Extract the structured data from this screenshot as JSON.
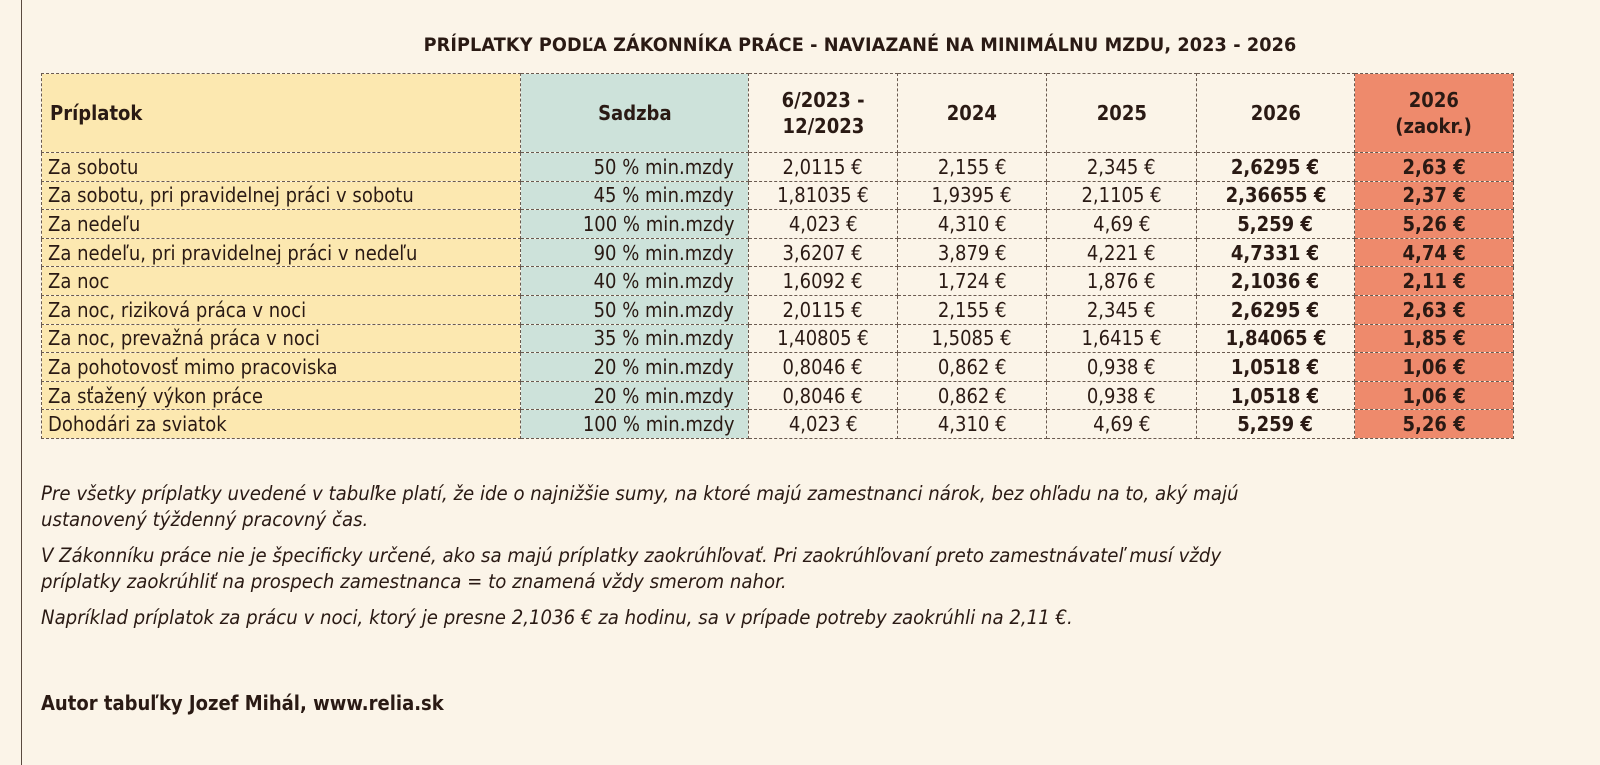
{
  "title": "PRÍPLATKY PODĽA ZÁKONNÍKA PRÁCE - NAVIAZANÉ NA MINIMÁLNU MZDU, 2023 - 2026",
  "table": {
    "headers": {
      "name": "Príplatok",
      "rate": "Sadzba",
      "col_2023": "6/2023 -\n12/2023",
      "col_2023_line1": "6/2023 -",
      "col_2023_line2": "12/2023",
      "col_2024": "2024",
      "col_2025": "2025",
      "col_2026": "2026",
      "col_2026_rounded_line1": "2026",
      "col_2026_rounded_line2": "(zaokr.)"
    },
    "rows": [
      {
        "name": "Za sobotu",
        "rate": "50 % min.mzdy",
        "y2023": "2,0115 €",
        "y2024": "2,155 €",
        "y2025": "2,345 €",
        "y2026": "2,6295 €",
        "y2026r": "2,63 €"
      },
      {
        "name": "Za sobotu, pri pravidelnej práci v sobotu",
        "rate": "45 % min.mzdy",
        "y2023": "1,81035 €",
        "y2024": "1,9395 €",
        "y2025": "2,1105 €",
        "y2026": "2,36655 €",
        "y2026r": "2,37 €"
      },
      {
        "name": "Za nedeľu",
        "rate": "100 % min.mzdy",
        "y2023": "4,023 €",
        "y2024": "4,310 €",
        "y2025": "4,69 €",
        "y2026": "5,259 €",
        "y2026r": "5,26 €"
      },
      {
        "name": "Za nedeľu, pri pravidelnej práci v nedeľu",
        "rate": "90 % min.mzdy",
        "y2023": "3,6207 €",
        "y2024": "3,879 €",
        "y2025": "4,221 €",
        "y2026": "4,7331 €",
        "y2026r": "4,74 €"
      },
      {
        "name": "Za noc",
        "rate": "40 % min.mzdy",
        "y2023": "1,6092 €",
        "y2024": "1,724 €",
        "y2025": "1,876 €",
        "y2026": "2,1036 €",
        "y2026r": "2,11 €"
      },
      {
        "name": "Za noc, riziková práca v noci",
        "rate": "50 % min.mzdy",
        "y2023": "2,0115 €",
        "y2024": "2,155 €",
        "y2025": "2,345 €",
        "y2026": "2,6295 €",
        "y2026r": "2,63 €"
      },
      {
        "name": "Za noc, prevažná práca v noci",
        "rate": "35 % min.mzdy",
        "y2023": "1,40805 €",
        "y2024": "1,5085 €",
        "y2025": "1,6415 €",
        "y2026": "1,84065 €",
        "y2026r": "1,85 €"
      },
      {
        "name": "Za pohotovosť mimo pracoviska",
        "rate": "20 % min.mzdy",
        "y2023": "0,8046 €",
        "y2024": "0,862 €",
        "y2025": "0,938 €",
        "y2026": "1,0518 €",
        "y2026r": "1,06 €"
      },
      {
        "name": "Za sťažený výkon práce",
        "rate": "20 % min.mzdy",
        "y2023": "0,8046 €",
        "y2024": "0,862 €",
        "y2025": "0,938 €",
        "y2026": "1,0518 €",
        "y2026r": "1,06 €"
      },
      {
        "name": "Dohodári za sviatok",
        "rate": "100 % min.mzdy",
        "y2023": "4,023 €",
        "y2024": "4,310 €",
        "y2025": "4,69 €",
        "y2026": "5,259 €",
        "y2026r": "5,26 €"
      }
    ]
  },
  "notes": [
    "Pre všetky príplatky uvedené v tabuľke platí, že ide o najnižšie sumy, na ktoré majú zamestnanci nárok, bez ohľadu na to, aký majú",
    "ustanovený týždenný pracovný čas.",
    "V Zákonníku práce nie je špecificky určené, ako sa majú príplatky zaokrúhľovať. Pri zaokrúhľovaní preto zamestnávateľ musí vždy",
    "príplatky zaokrúhliť na prospech zamestnanca = to znamená vždy smerom nahor.",
    "Napríklad príplatok za prácu v noci, ktorý je presne 2,1036 € za hodinu, sa v prípade potreby zaokrúhli na 2,11 €."
  ],
  "author": "Autor tabuľky Jozef Mihál, www.relia.sk",
  "colors": {
    "background": "#fbf4e8",
    "name_column": "#fce8b0",
    "rate_column": "#cde2da",
    "rounded_column": "#ee8a6c",
    "text": "#2a1a14"
  }
}
